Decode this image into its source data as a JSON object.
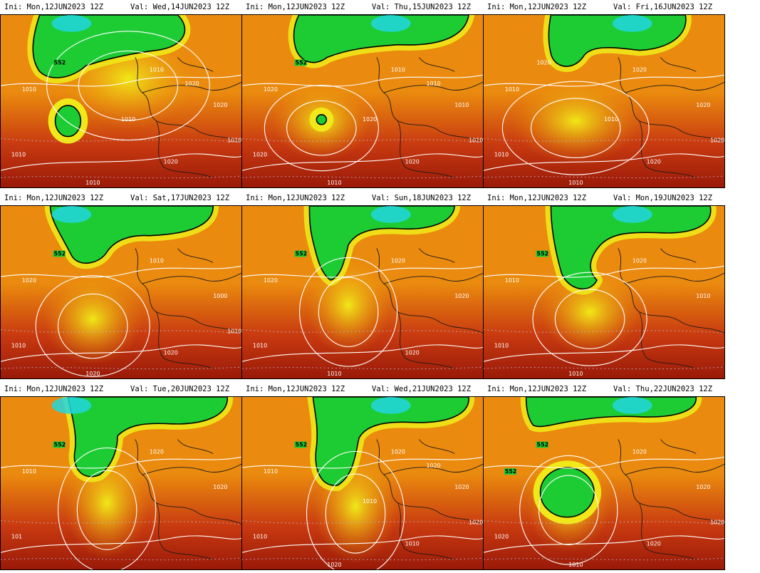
{
  "panels": [
    {
      "ini": "Ini:  Mon,12JUN2023  12Z",
      "val": "Val:  Wed,14JUN2023  12Z",
      "labels": [
        "552",
        "1010",
        "1010",
        "1020",
        "1010",
        "1010",
        "1020",
        "1010",
        "1010",
        "1020"
      ]
    },
    {
      "ini": "Ini:  Mon,12JUN2023  12Z",
      "val": "Val:  Thu,15JUN2023  12Z",
      "labels": [
        "552",
        "1010",
        "1020",
        "1010",
        "1020",
        "1010",
        "1020",
        "1010",
        "1020",
        "1010"
      ]
    },
    {
      "ini": "Ini:  Mon,12JUN2023  12Z",
      "val": "Val:  Fri,16JUN2023  12Z",
      "labels": [
        "1020",
        "1020",
        "1010",
        "1020",
        "1010",
        "1010",
        "1020",
        "1020",
        "1010"
      ]
    },
    {
      "ini": "Ini:  Mon,12JUN2023  12Z",
      "val": "Val:  Sat,17JUN2023  12Z",
      "labels": [
        "552",
        "1010",
        "1020",
        "1000",
        "1010",
        "1020",
        "1020",
        "1010"
      ]
    },
    {
      "ini": "Ini:  Mon,12JUN2023  12Z",
      "val": "Val:  Sun,18JUN2023  12Z",
      "labels": [
        "552",
        "1020",
        "1020",
        "1020",
        "1010",
        "1010",
        "1020"
      ]
    },
    {
      "ini": "Ini:  Mon,12JUN2023  12Z",
      "val": "Val:  Mon,19JUN2023  12Z",
      "labels": [
        "552",
        "1020",
        "1010",
        "1010",
        "1010",
        "1010"
      ]
    },
    {
      "ini": "Ini:  Mon,12JUN2023  12Z",
      "val": "Val:  Tue,20JUN2023  12Z",
      "labels": [
        "552",
        "1020",
        "1010",
        "1020",
        "101"
      ]
    },
    {
      "ini": "Ini:  Mon,12JUN2023  12Z",
      "val": "Val:  Wed,21JUN2023  12Z",
      "labels": [
        "552",
        "1020",
        "1010",
        "1020",
        "1010",
        "1020",
        "1010",
        "1020",
        "1010",
        "1020"
      ]
    },
    {
      "ini": "Ini:  Mon,12JUN2023  12Z",
      "val": "Val:  Thu,22JUN2023  12Z",
      "labels": [
        "552",
        "1020",
        "552",
        "1020",
        "1020",
        "1010",
        "1020",
        "1020"
      ]
    }
  ],
  "colors": {
    "low_cyan": "#22d6e0",
    "low_green": "#1dcc33",
    "yellow": "#f0e818",
    "orange": "#ea8a0e",
    "red": "#c83a10",
    "deep_red": "#9a1a08",
    "isobar": "#ffffff",
    "coast": "#1a1a1a"
  }
}
